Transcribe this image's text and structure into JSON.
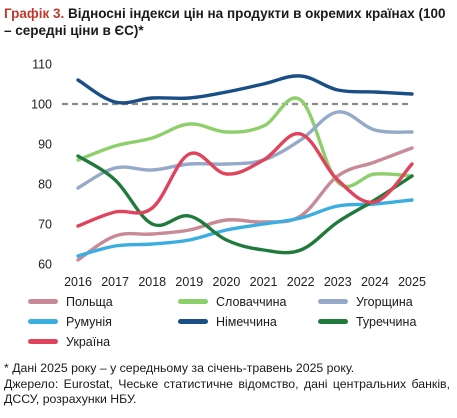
{
  "title": {
    "number": "Графік 3.",
    "text": "Відносні індекси цін на продукти в окремих країнах (100 – середні ціни в ЄС)*"
  },
  "chart_data": {
    "type": "line",
    "x": [
      "2016",
      "2017",
      "2018",
      "2019",
      "2020",
      "2021",
      "2022",
      "2023",
      "2024",
      "2025"
    ],
    "ylim": [
      60,
      110
    ],
    "yticks": [
      60,
      70,
      80,
      90,
      100,
      110
    ],
    "grid": false,
    "reference_line": {
      "value": 100,
      "color": "#8c8c8c",
      "style": "dashed"
    },
    "legend_position": "bottom",
    "series": [
      {
        "name": "Польща",
        "color": "#c98a98",
        "values": [
          61,
          67,
          67.5,
          68.5,
          71,
          70.5,
          72,
          82,
          85.5,
          89
        ]
      },
      {
        "name": "Словаччина",
        "color": "#8dcf6a",
        "values": [
          86,
          89.5,
          91.5,
          95,
          93,
          94.5,
          101,
          80.5,
          82.5,
          82
        ]
      },
      {
        "name": "Угорщина",
        "color": "#95aac9",
        "values": [
          79,
          84,
          83.5,
          85,
          85,
          86,
          91,
          98,
          93.5,
          93
        ]
      },
      {
        "name": "Румунія",
        "color": "#3aaee0",
        "values": [
          62,
          64.5,
          65,
          66,
          68.5,
          70,
          71.5,
          74.5,
          75,
          76
        ]
      },
      {
        "name": "Німеччина",
        "color": "#1a4e86",
        "values": [
          106,
          100.5,
          101.5,
          101.5,
          103,
          105,
          107,
          103.5,
          103,
          102.5
        ]
      },
      {
        "name": "Туреччина",
        "color": "#1f7a3c",
        "values": [
          87,
          81,
          70,
          72,
          66,
          63.5,
          63.5,
          70.5,
          76,
          82
        ]
      },
      {
        "name": "Україна",
        "color": "#e0435c",
        "values": [
          69.5,
          73,
          74,
          87.5,
          82.5,
          86,
          92.5,
          81,
          75.5,
          85
        ]
      }
    ]
  },
  "footnote": {
    "note": "* Дані 2025 року – у середньому за січень-травень 2025 року.",
    "source": "Джерело: Eurostat, Чеське статистичне відомство, дані центральних банків, ДССУ, розрахунки НБУ."
  }
}
